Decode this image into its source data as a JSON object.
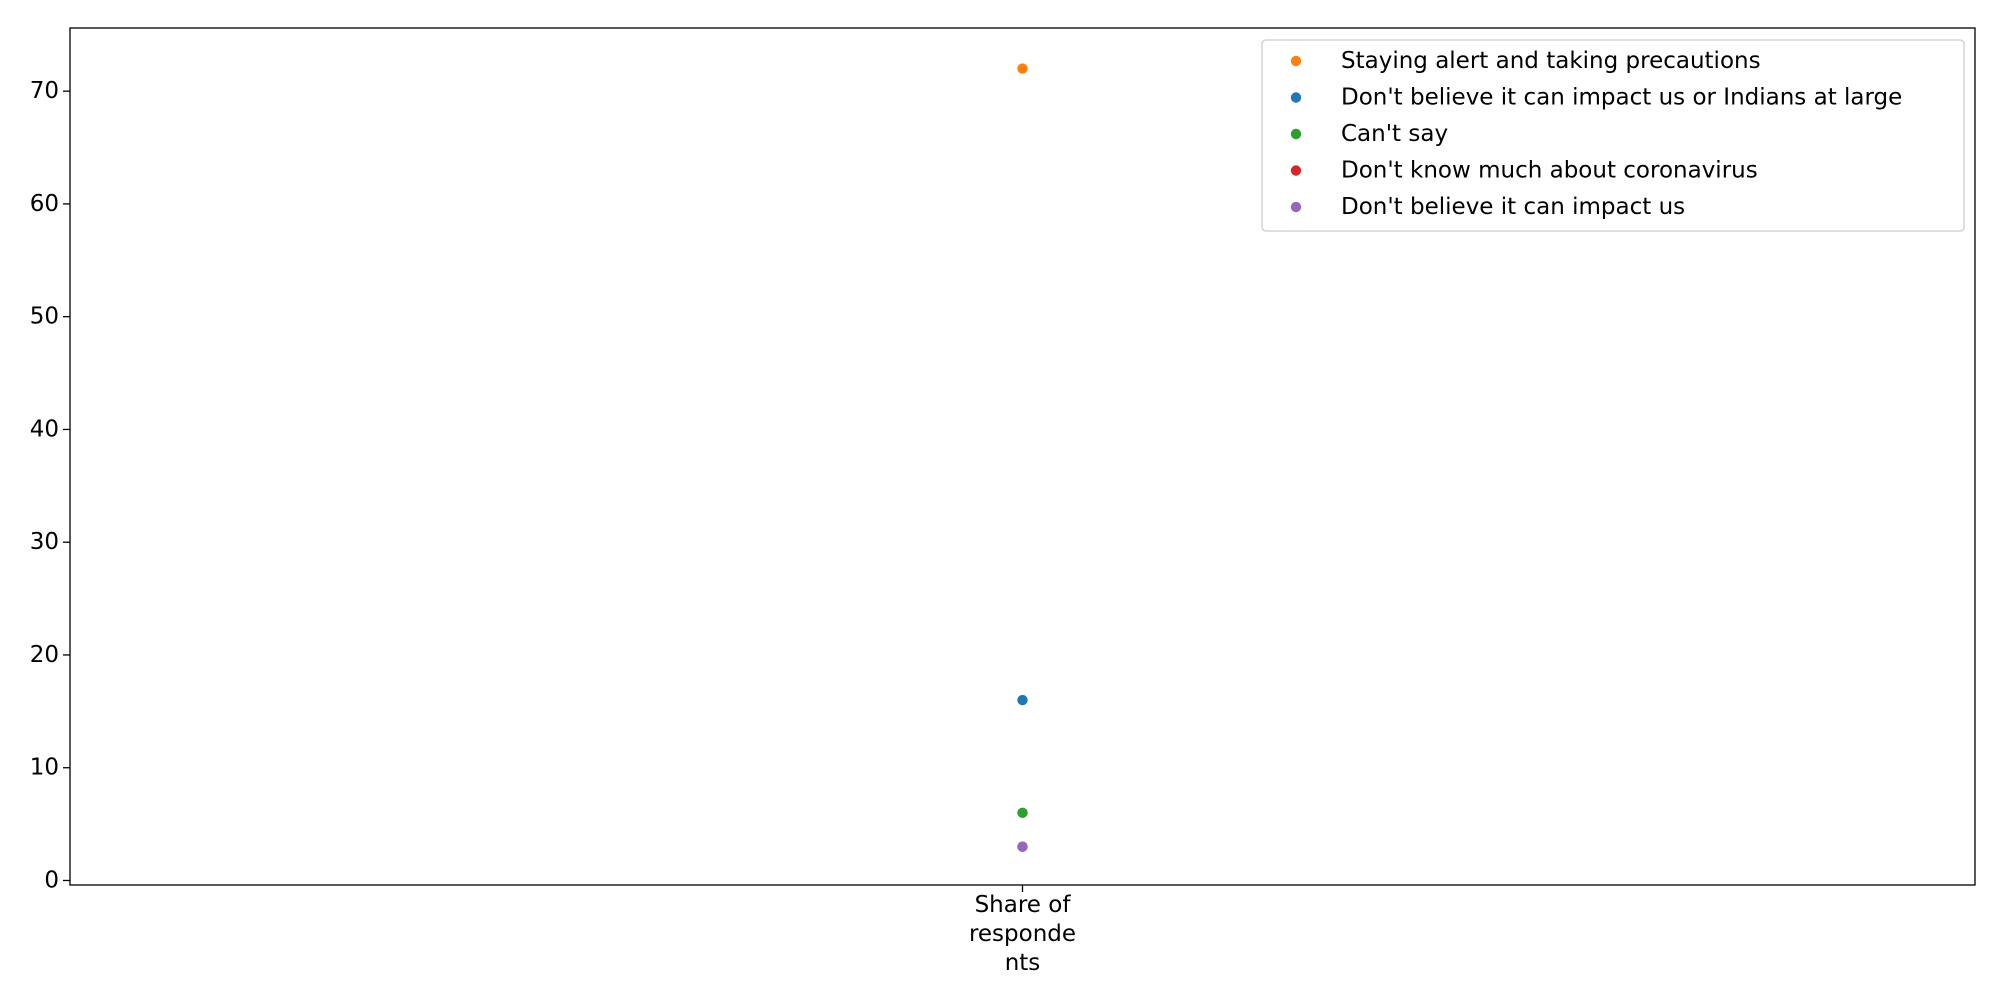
{
  "chart_data": {
    "type": "scatter",
    "categories": [
      "Share of\nresponde\nnts"
    ],
    "series": [
      {
        "name": "Staying alert and taking precautions",
        "color": "#ff7f0e",
        "values": [
          72
        ]
      },
      {
        "name": "Don't believe it can impact us or Indians at large",
        "color": "#1f77b4",
        "values": [
          16
        ]
      },
      {
        "name": "Can't say",
        "color": "#2ca02c",
        "values": [
          6
        ]
      },
      {
        "name": "Don't know much about coronavirus",
        "color": "#d62728",
        "values": [
          3
        ]
      },
      {
        "name": "Don't believe it can impact us",
        "color": "#9467bd",
        "values": [
          3
        ]
      }
    ],
    "ylim": [
      -0.4,
      75.6
    ],
    "yticks": [
      0,
      10,
      20,
      30,
      40,
      50,
      60,
      70
    ],
    "title": "",
    "xlabel": "",
    "ylabel": "",
    "grid": false,
    "legend_position": "top-right"
  }
}
